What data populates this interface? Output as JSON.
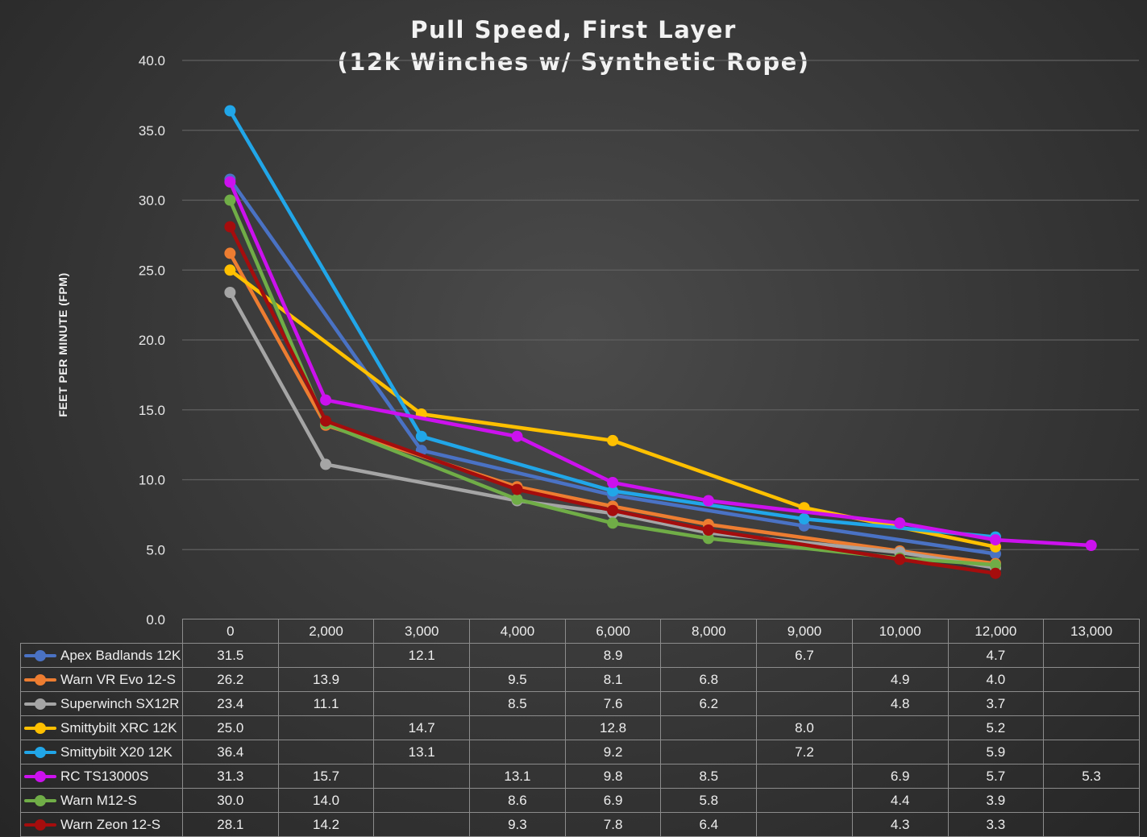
{
  "chart_data": {
    "type": "line",
    "title": "Pull Speed, First Layer",
    "subtitle": "(12k Winches w/ Synthetic Rope)",
    "ylabel": "FEET PER MINUTE (FPM)",
    "xlabel": "",
    "ylim": [
      0,
      40
    ],
    "yticks": [
      "0.0",
      "5.0",
      "10.0",
      "15.0",
      "20.0",
      "25.0",
      "30.0",
      "35.0",
      "40.0"
    ],
    "grid": true,
    "legend": "data-table",
    "categories": [
      "0",
      "2,000",
      "3,000",
      "4,000",
      "6,000",
      "8,000",
      "9,000",
      "10,000",
      "12,000",
      "13,000"
    ],
    "series": [
      {
        "name": "Apex Badlands 12K",
        "color": "#4a72c4",
        "values": [
          "31.5",
          "",
          "12.1",
          "",
          "8.9",
          "",
          "6.7",
          "",
          "4.7",
          ""
        ]
      },
      {
        "name": "Warn VR Evo 12-S",
        "color": "#ed7d31",
        "values": [
          "26.2",
          "13.9",
          "",
          "9.5",
          "8.1",
          "6.8",
          "",
          "4.9",
          "4.0",
          ""
        ]
      },
      {
        "name": "Superwinch SX12R",
        "color": "#a5a5a5",
        "values": [
          "23.4",
          "11.1",
          "",
          "8.5",
          "7.6",
          "6.2",
          "",
          "4.8",
          "3.7",
          ""
        ]
      },
      {
        "name": "Smittybilt XRC 12K",
        "color": "#ffc000",
        "values": [
          "25.0",
          "",
          "14.7",
          "",
          "12.8",
          "",
          "8.0",
          "",
          "5.2",
          ""
        ]
      },
      {
        "name": "Smittybilt X20 12K",
        "color": "#21a6e8",
        "values": [
          "36.4",
          "",
          "13.1",
          "",
          "9.2",
          "",
          "7.2",
          "",
          "5.9",
          ""
        ]
      },
      {
        "name": "RC TS13000S",
        "color": "#cc11ee",
        "values": [
          "31.3",
          "15.7",
          "",
          "13.1",
          "9.8",
          "8.5",
          "",
          "6.9",
          "5.7",
          "5.3"
        ]
      },
      {
        "name": "Warn M12-S",
        "color": "#70ad47",
        "values": [
          "30.0",
          "14.0",
          "",
          "8.6",
          "6.9",
          "5.8",
          "",
          "4.4",
          "3.9",
          ""
        ]
      },
      {
        "name": "Warn Zeon 12-S",
        "color": "#a50d0d",
        "values": [
          "28.1",
          "14.2",
          "",
          "9.3",
          "7.8",
          "6.4",
          "",
          "4.3",
          "3.3",
          ""
        ]
      }
    ]
  }
}
